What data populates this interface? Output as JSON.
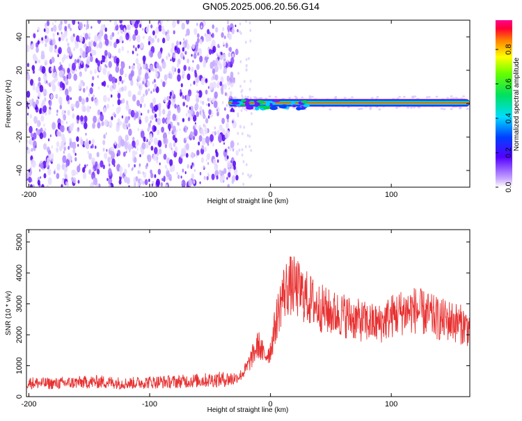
{
  "title": "GN05.2025.006.20.56.G14",
  "chart_data": [
    {
      "type": "heatmap",
      "xlabel": "Height of straight line (km)",
      "ylabel": "Frequency (Hz)",
      "xlim": [
        -202,
        165
      ],
      "ylim": [
        -50,
        50
      ],
      "x_ticks": [
        -200,
        -100,
        0,
        100
      ],
      "y_ticks": [
        -40,
        -20,
        0,
        20,
        40
      ],
      "colorbar": {
        "label": "Normalized spectral amplitude",
        "range": [
          0,
          0.97
        ],
        "ticks": [
          0.0,
          0.2,
          0.4,
          0.6,
          0.8
        ]
      },
      "features": [
        {
          "kind": "noise",
          "x_range": [
            -202,
            -27
          ],
          "f_range": [
            -50,
            50
          ],
          "amplitude": "low"
        },
        {
          "kind": "tone",
          "x_range": [
            -35,
            165
          ],
          "frequency": 0.5,
          "amplitude": "high"
        }
      ]
    },
    {
      "type": "line",
      "xlabel": "Height of straight line (km)",
      "ylabel": "SNR (10 * v/v)",
      "xlim": [
        -202,
        165
      ],
      "ylim": [
        0,
        5400
      ],
      "x_ticks": [
        -200,
        -100,
        0,
        100
      ],
      "y_ticks": [
        0,
        1000,
        2000,
        3000,
        4000,
        5000
      ],
      "series": [
        {
          "color": "#e83030",
          "x": [
            -200,
            -180,
            -160,
            -140,
            -120,
            -100,
            -80,
            -60,
            -40,
            -30,
            -25,
            -20,
            -15,
            -10,
            -5,
            0,
            5,
            10,
            15,
            20,
            30,
            40,
            50,
            60,
            70,
            80,
            90,
            100,
            110,
            120,
            130,
            140,
            150,
            160,
            165
          ],
          "y": [
            450,
            420,
            460,
            480,
            430,
            470,
            480,
            520,
            560,
            580,
            680,
            900,
            1300,
            1700,
            1300,
            1500,
            2500,
            3300,
            3600,
            3550,
            3200,
            2900,
            2700,
            2650,
            2500,
            2400,
            2350,
            2600,
            2750,
            2800,
            2650,
            2500,
            2450,
            2300,
            2200
          ]
        }
      ]
    }
  ]
}
